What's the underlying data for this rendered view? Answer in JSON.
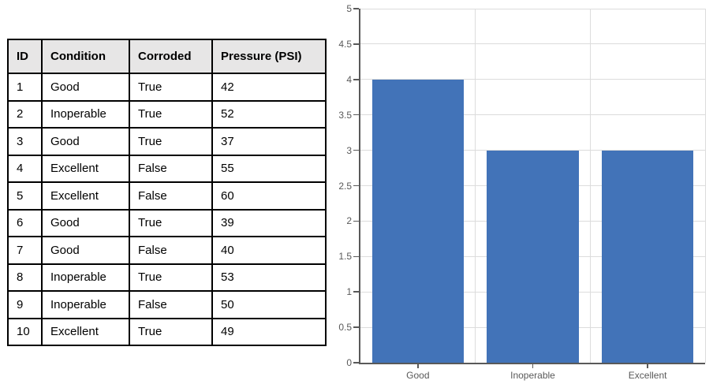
{
  "table": {
    "headers": [
      "ID",
      "Condition",
      "Corroded",
      "Pressure (PSI)"
    ],
    "rows": [
      [
        "1",
        "Good",
        "True",
        "42"
      ],
      [
        "2",
        "Inoperable",
        "True",
        "52"
      ],
      [
        "3",
        "Good",
        "True",
        "37"
      ],
      [
        "4",
        "Excellent",
        "False",
        "55"
      ],
      [
        "5",
        "Excellent",
        "False",
        "60"
      ],
      [
        "6",
        "Good",
        "True",
        "39"
      ],
      [
        "7",
        "Good",
        "False",
        "40"
      ],
      [
        "8",
        "Inoperable",
        "True",
        "53"
      ],
      [
        "9",
        "Inoperable",
        "False",
        "50"
      ],
      [
        "10",
        "Excellent",
        "True",
        "49"
      ]
    ],
    "header_bg": "#e7e6e6",
    "border_color": "#000000"
  },
  "chart_data": {
    "type": "bar",
    "categories": [
      "Good",
      "Inoperable",
      "Excellent"
    ],
    "values": [
      4,
      3,
      3
    ],
    "title": "",
    "xlabel": "",
    "ylabel": "",
    "ylim": [
      0,
      5
    ],
    "ytick_step": 0.5,
    "ytick_labels": [
      "0",
      "0.5",
      "1",
      "1.5",
      "2",
      "2.5",
      "3",
      "3.5",
      "4",
      "4.5",
      "5"
    ],
    "grid": true,
    "legend": false,
    "bar_color": "#4273b8",
    "gridline_color": "#dcdcdc",
    "axis_color": "#595959",
    "label_color": "#595959"
  }
}
